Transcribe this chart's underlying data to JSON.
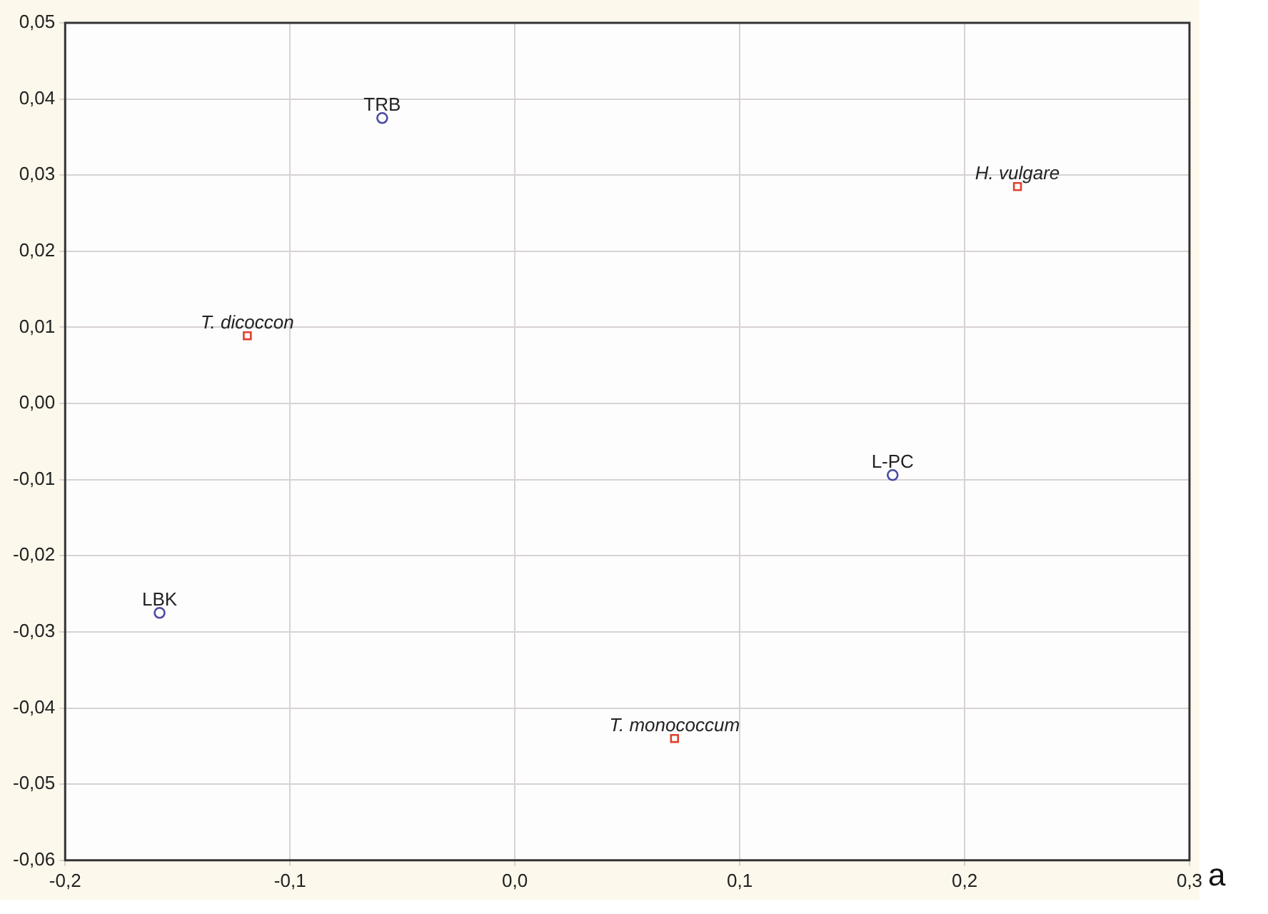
{
  "chart_data": {
    "type": "scatter",
    "series": [
      {
        "color": "#4a4aa0",
        "marker": "circle",
        "x": [
          -0.059,
          0.168,
          -0.158
        ],
        "values": [
          0.0375,
          -0.0094,
          -0.0275
        ]
      },
      {
        "color": "#e0402c",
        "marker": "square",
        "x": [
          -0.119,
          0.2235,
          0.071
        ],
        "values": [
          0.0089,
          0.0285,
          -0.044
        ]
      }
    ],
    "xlim": [
      -0.2,
      0.3
    ],
    "ylim": [
      -0.06,
      0.05
    ],
    "xticks": [
      {
        "value": -0.2,
        "label": "-0,2"
      },
      {
        "value": -0.1,
        "label": "-0,1"
      },
      {
        "value": 0,
        "label": "0,0"
      },
      {
        "value": 0.1,
        "label": "0,1"
      },
      {
        "value": 0.2,
        "label": "0,2"
      },
      {
        "value": 0.3,
        "label": "0,3"
      }
    ],
    "yticks": [
      {
        "value": -0.06,
        "label": "-0,06"
      },
      {
        "value": -0.05,
        "label": "-0,05"
      },
      {
        "value": -0.04,
        "label": "-0,04"
      },
      {
        "value": -0.03,
        "label": "-0,03"
      },
      {
        "value": -0.02,
        "label": "-0,02"
      },
      {
        "value": -0.01,
        "label": "-0,01"
      },
      {
        "value": 0,
        "label": "0,00"
      },
      {
        "value": 0.01,
        "label": "0,01"
      },
      {
        "value": 0.02,
        "label": "0,02"
      },
      {
        "value": 0.03,
        "label": "0,03"
      },
      {
        "value": 0.04,
        "label": "0,04"
      },
      {
        "value": 0.05,
        "label": "0,05"
      }
    ],
    "grid": true,
    "annotations": [
      {
        "text": "TRB",
        "x": -0.059,
        "y": 0.0375
      },
      {
        "text": "L-PC",
        "x": 0.168,
        "y": -0.0094
      },
      {
        "text": "LBK",
        "x": -0.158,
        "y": -0.0275
      },
      {
        "text": "T. dicoccon",
        "x": -0.119,
        "y": 0.0089
      },
      {
        "text": "H. vulgare",
        "x": 0.2235,
        "y": 0.0285
      },
      {
        "text": "T. monococcum",
        "x": 0.071,
        "y": -0.044
      },
      "a"
    ]
  }
}
